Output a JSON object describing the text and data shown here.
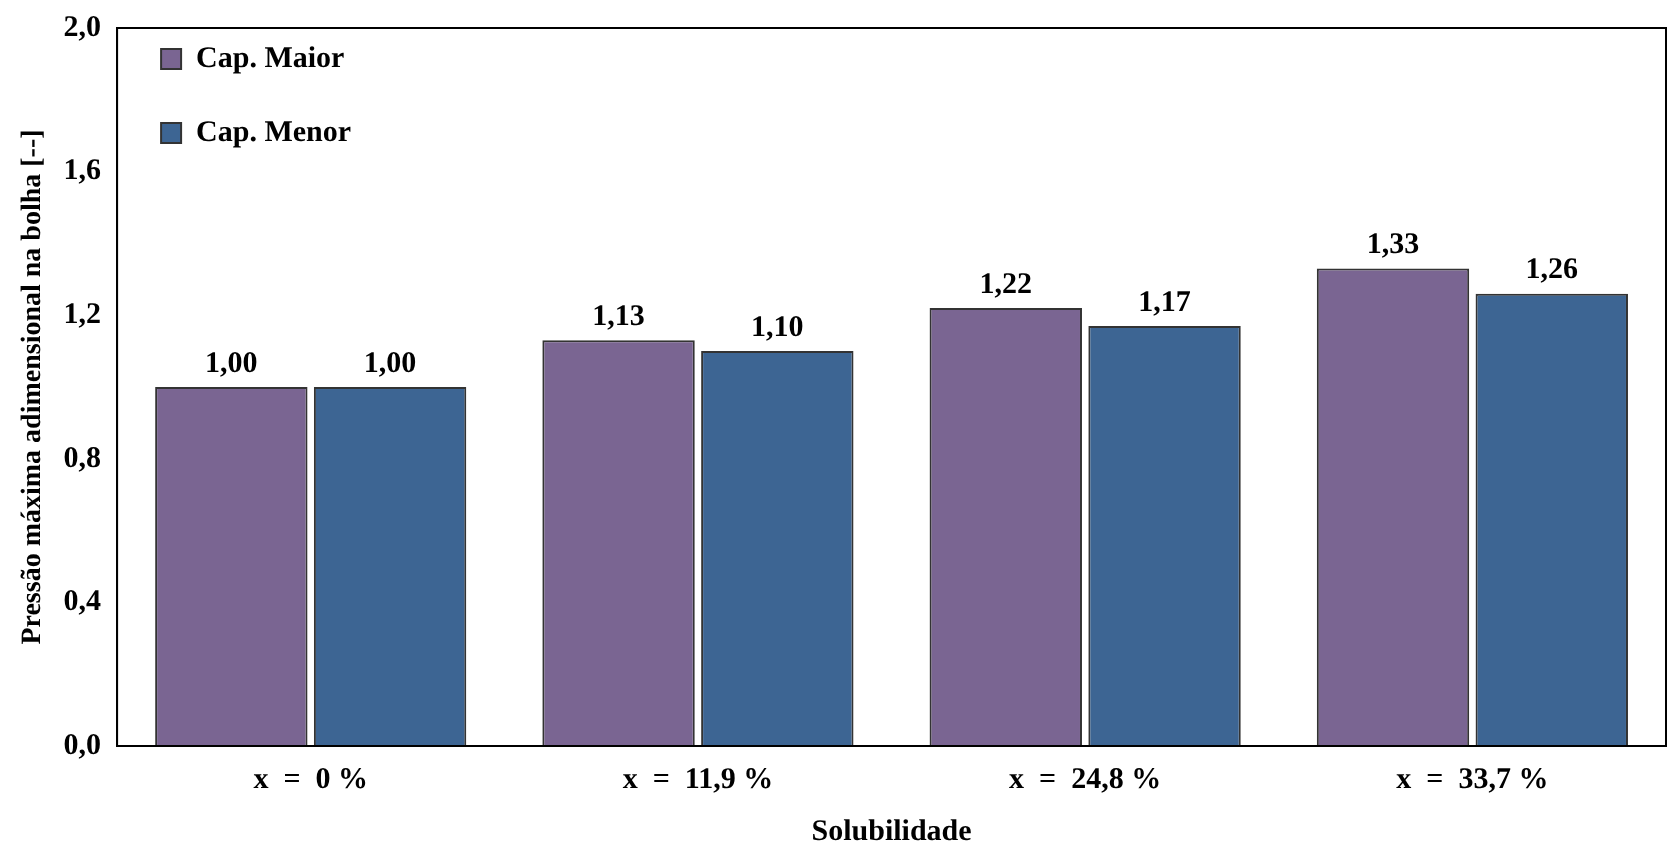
{
  "chart_data": {
    "type": "bar",
    "xlabel": "Solubilidade",
    "ylabel": "Pressão máxima adimensional na bolha [--]",
    "categories": [
      "x  =  0 %",
      "x  =  11,9 %",
      "x  =  24,8 %",
      "x  =  33,7 %"
    ],
    "series": [
      {
        "name": "Cap. Maior",
        "color": "#7a6592",
        "values": [
          1.0,
          1.13,
          1.22,
          1.33
        ],
        "value_labels": [
          "1,00",
          "1,13",
          "1,22",
          "1,33"
        ]
      },
      {
        "name": "Cap. Menor",
        "color": "#3d6593",
        "values": [
          1.0,
          1.1,
          1.17,
          1.26
        ],
        "value_labels": [
          "1,00",
          "1,10",
          "1,17",
          "1,26"
        ]
      }
    ],
    "ylim": [
      0,
      2
    ],
    "yticks": [
      {
        "value": 0,
        "label": "0,0"
      },
      {
        "value": 0.4,
        "label": "0,4"
      },
      {
        "value": 0.8,
        "label": "0,8"
      },
      {
        "value": 1.2,
        "label": "1,2"
      },
      {
        "value": 1.6,
        "label": "1,6"
      },
      {
        "value": 2,
        "label": "2,0"
      }
    ],
    "grid": false,
    "legend": "top left"
  }
}
